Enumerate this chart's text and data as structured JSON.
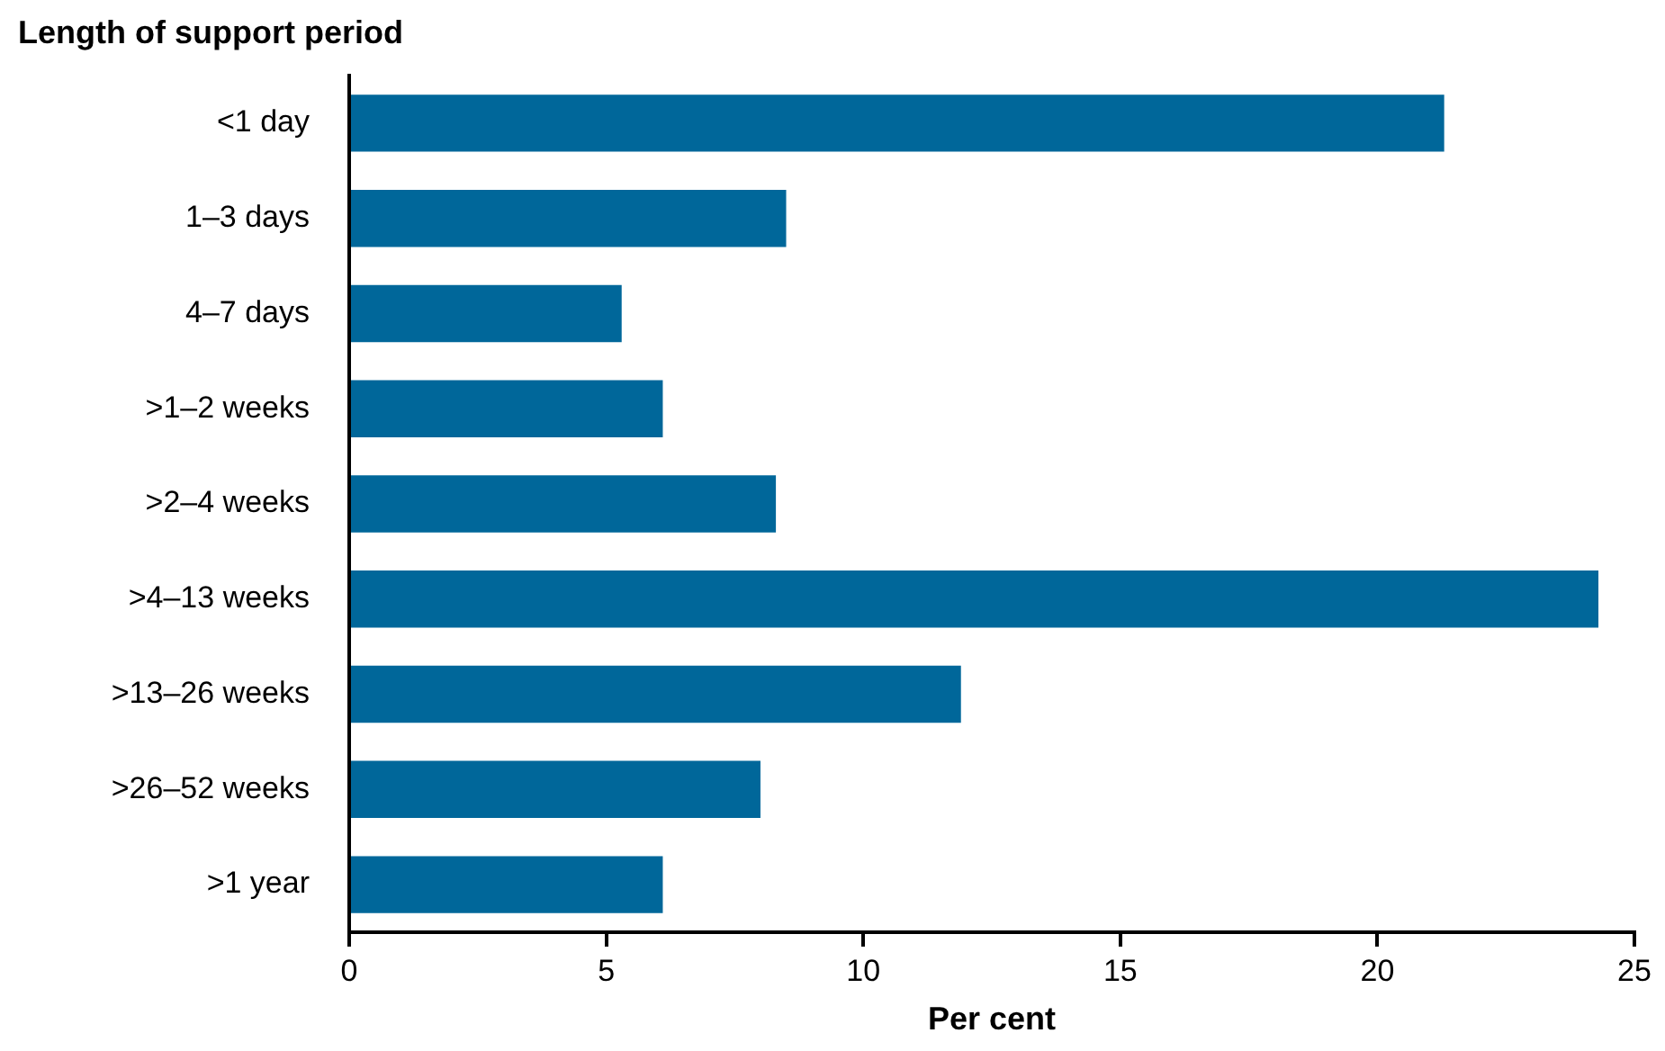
{
  "chart_data": {
    "type": "bar",
    "orientation": "horizontal",
    "ylabel": "Length of support period",
    "xlabel": "Per cent",
    "categories": [
      "<1 day",
      "1–3 days",
      "4–7 days",
      ">1–2 weeks",
      ">2–4 weeks",
      ">4–13 weeks",
      ">13–26 weeks",
      ">26–52 weeks",
      ">1 year"
    ],
    "values": [
      21.3,
      8.5,
      5.3,
      6.1,
      8.3,
      24.3,
      11.9,
      8.0,
      6.1
    ],
    "color": "#00679a",
    "xlim": [
      0,
      25
    ],
    "xticks": [
      0,
      5,
      10,
      15,
      20,
      25
    ]
  }
}
